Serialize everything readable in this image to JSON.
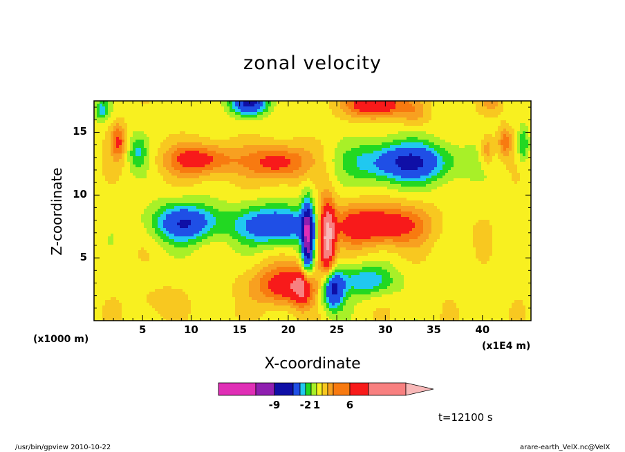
{
  "chart_data": {
    "type": "heatmap",
    "title": "zonal velocity",
    "xlabel": "X-coordinate",
    "ylabel": "Z-coordinate",
    "x_unit": "(x1000 m)",
    "x_unit_right": "(x1E4 m)",
    "x_ticks": [
      "5",
      "10",
      "15",
      "20",
      "25",
      "30",
      "35",
      "40"
    ],
    "y_ticks": [
      "5",
      "10",
      "15"
    ],
    "xlim": [
      0,
      45
    ],
    "ylim": [
      0,
      17.5
    ],
    "colorbar": {
      "colors": [
        "#e02fb6",
        "#8f1fb0",
        "#0f0fa6",
        "#1f4fe6",
        "#20c8f0",
        "#22d822",
        "#a8f028",
        "#f8f020",
        "#f8c820",
        "#f8a020",
        "#f87a10",
        "#f81a1a",
        "#f88080",
        "#f8b8b8"
      ],
      "labels": [
        "-9",
        "-2",
        "1",
        "6"
      ]
    },
    "time_label": "t=12100 s",
    "footer_left": "/usr/bin/gpview   2010-10-22",
    "footer_right": "arare-earth_VelX.nc@VelX"
  }
}
